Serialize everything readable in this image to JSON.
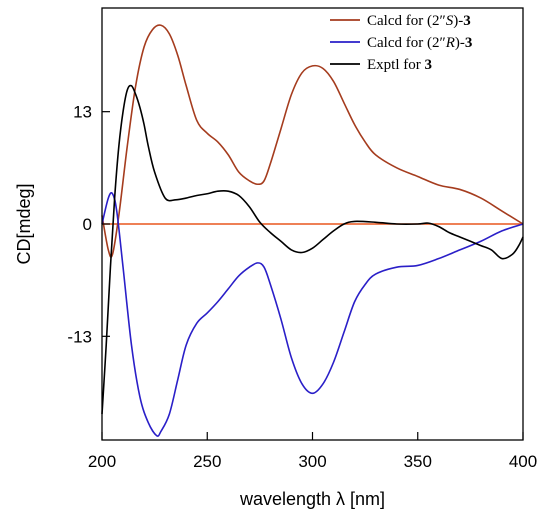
{
  "chart_data": {
    "type": "line",
    "xlabel": "wavelength λ [nm]",
    "ylabel": "CD[mdeg]",
    "xlim": [
      200,
      400
    ],
    "ylim": [
      -25,
      25
    ],
    "xticks": [
      200,
      250,
      300,
      350,
      400
    ],
    "yticks": [
      -13,
      0,
      13
    ],
    "legend_position": "top-right",
    "grid": false,
    "zero_line": {
      "y": 0,
      "color": "#e8571e"
    },
    "series": [
      {
        "legend": {
          "prefix": "Calcd for (2″",
          "italic": "S",
          "suffix": ")-",
          "bold": "3"
        },
        "color": "#a53c1e",
        "x": [
          200,
          203,
          205,
          208,
          212,
          216,
          220,
          224,
          228,
          232,
          236,
          240,
          245,
          250,
          255,
          260,
          265,
          270,
          274,
          277,
          280,
          285,
          290,
          295,
          300,
          305,
          310,
          315,
          320,
          325,
          330,
          340,
          350,
          360,
          370,
          380,
          390,
          400
        ],
        "y": [
          1,
          -3,
          -3.5,
          1,
          9,
          16,
          20.5,
          22.5,
          23,
          22,
          19.5,
          16,
          12,
          10.5,
          9.5,
          8,
          6,
          5,
          4.6,
          5,
          7,
          11,
          15,
          17.5,
          18.3,
          18,
          16.5,
          14,
          11.5,
          9.5,
          8,
          6.5,
          5.5,
          4.5,
          4,
          3,
          1.5,
          0
        ]
      },
      {
        "legend": {
          "prefix": "Calcd for (2″",
          "italic": "R",
          "suffix": ")-",
          "bold": "3"
        },
        "color": "#2a1fc8",
        "x": [
          200,
          203,
          205,
          207,
          210,
          214,
          218,
          222,
          226,
          228,
          232,
          236,
          240,
          245,
          250,
          255,
          260,
          265,
          270,
          274,
          277,
          280,
          285,
          290,
          295,
          300,
          305,
          310,
          315,
          320,
          325,
          330,
          340,
          350,
          360,
          370,
          380,
          390,
          400
        ],
        "y": [
          0,
          3,
          3.5,
          1.5,
          -5,
          -14,
          -20,
          -23,
          -24.5,
          -24,
          -22,
          -18,
          -14,
          -11.5,
          -10.3,
          -9,
          -7.5,
          -6,
          -5,
          -4.5,
          -5,
          -7,
          -11,
          -15.5,
          -18.5,
          -19.6,
          -18.5,
          -16,
          -12.5,
          -9,
          -7,
          -5.8,
          -5,
          -4.8,
          -4,
          -3,
          -2,
          -0.8,
          0
        ]
      },
      {
        "legend": {
          "prefix": "Exptl for ",
          "italic": "",
          "suffix": "",
          "bold": "3"
        },
        "color": "#000000",
        "x": [
          200,
          202,
          204,
          206,
          208,
          210,
          212,
          214,
          216,
          218,
          220,
          222,
          225,
          230,
          235,
          240,
          245,
          250,
          255,
          260,
          265,
          270,
          275,
          280,
          285,
          290,
          295,
          300,
          305,
          310,
          315,
          320,
          330,
          340,
          350,
          355,
          360,
          365,
          370,
          375,
          380,
          385,
          390,
          395,
          398,
          400
        ],
        "y": [
          -22,
          -14,
          -5,
          3,
          9,
          13,
          15.5,
          16,
          15,
          13.5,
          11.5,
          9,
          6,
          3,
          2.8,
          3,
          3.3,
          3.5,
          3.8,
          3.8,
          3.3,
          2,
          0.2,
          -1,
          -2,
          -3,
          -3.3,
          -2.8,
          -1.8,
          -0.8,
          0,
          0.3,
          0.2,
          0,
          0,
          0.1,
          -0.3,
          -1,
          -1.5,
          -2,
          -2.5,
          -3,
          -4,
          -3.5,
          -2.5,
          -1.5
        ]
      }
    ]
  }
}
